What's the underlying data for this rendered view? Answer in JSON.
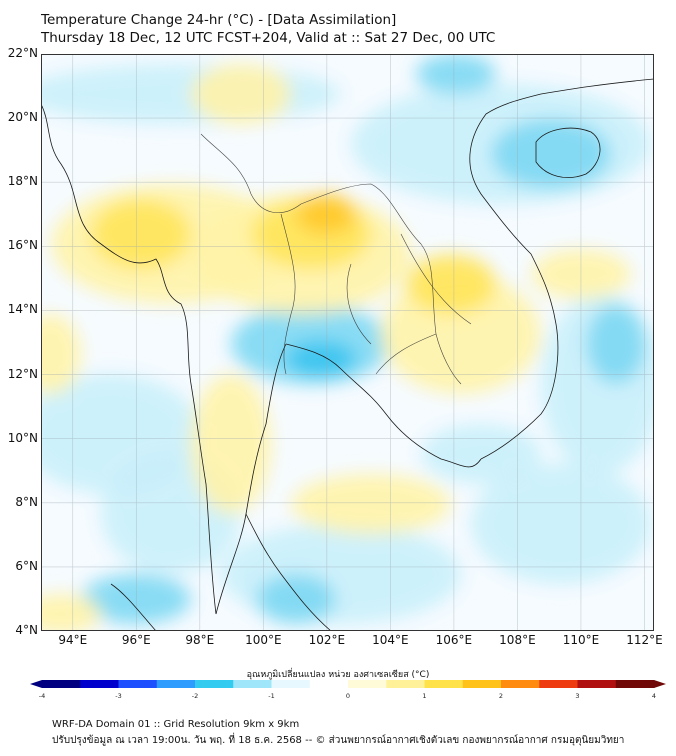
{
  "title_line1": "Temperature Change 24-hr (°C) - [Data Assimilation]",
  "title_line2": "Thursday 18 Dec, 12 UTC FCST+204, Valid at :: Sat 27 Dec, 00 UTC",
  "lat_labels": [
    "22°N",
    "20°N",
    "18°N",
    "16°N",
    "14°N",
    "12°N",
    "10°N",
    "8°N",
    "6°N",
    "4°N"
  ],
  "lon_labels": [
    "94°E",
    "96°E",
    "98°E",
    "100°E",
    "102°E",
    "104°E",
    "106°E",
    "108°E",
    "110°E",
    "112°E"
  ],
  "colorbar": {
    "title": "อุณหภูมิเปลี่ยนแปลง หน่วย องศาเซลเซียส (°C)",
    "ticks": [
      "-4",
      "-3",
      "-2",
      "-1",
      "0",
      "1",
      "2",
      "3",
      "4"
    ],
    "colors": [
      "#000080",
      "#0000cd",
      "#1e4fff",
      "#2e9bff",
      "#33ccf0",
      "#9fe6fa",
      "#e8f8ff",
      "#ffffff",
      "#fffbd8",
      "#fff19a",
      "#ffe24a",
      "#ffc21a",
      "#ff8c10",
      "#ee3b10",
      "#b01010",
      "#700808"
    ]
  },
  "footer_line1": "WRF-DA Domain 01 :: Grid Resolution 9km x 9km",
  "footer_line2": "ปรับปรุงข้อมูล ณ เวลา 19:00น. วัน พฤ. ที่ 18 ธ.ค. 2568 -- © ส่วนพยากรณ์อากาศเชิงตัวเลข กองพยากรณ์อากาศ กรมอุตุนิยมวิทยา",
  "map": {
    "field_colors": {
      "warm_light": "#fff3a8",
      "warm": "#ffe45a",
      "warm_strong": "#ffc828",
      "cool_light": "#c9f0fb",
      "cool": "#7dd8f3",
      "cool_strong": "#36c4ef",
      "neutral": "#f6fbff"
    }
  }
}
